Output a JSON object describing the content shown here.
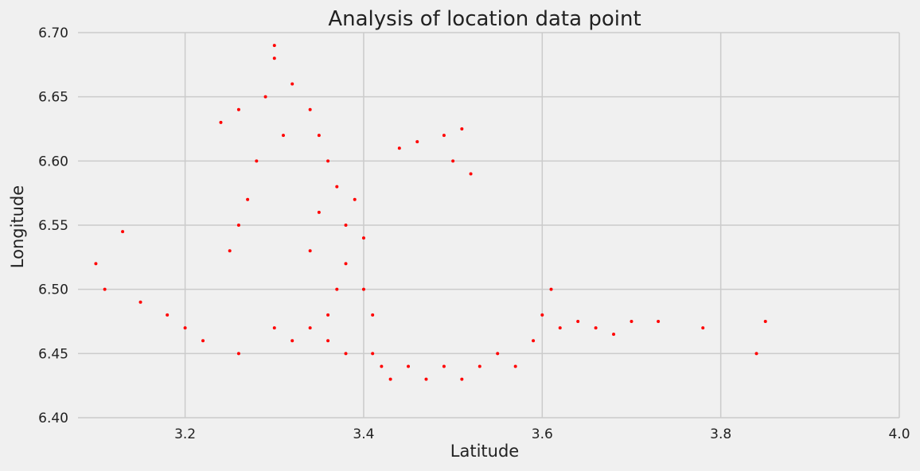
{
  "chart_data": {
    "type": "scatter",
    "title": "Analysis of location data point",
    "xlabel": "Latitude",
    "ylabel": "Longitude",
    "xlim": [
      3.08,
      4.0
    ],
    "ylim": [
      6.4,
      6.7
    ],
    "xticks": [
      3.2,
      3.4,
      3.6,
      3.8,
      4.0
    ],
    "xtick_labels": [
      "3.2",
      "3.4",
      "3.6",
      "3.8",
      "4.0"
    ],
    "yticks": [
      6.4,
      6.45,
      6.5,
      6.55,
      6.6,
      6.65,
      6.7
    ],
    "ytick_labels": [
      "6.40",
      "6.45",
      "6.50",
      "6.55",
      "6.60",
      "6.65",
      "6.70"
    ],
    "grid": true,
    "marker_color": "#ff0000",
    "background_color": "#f0f0f0",
    "grid_color": "#cbcbcb",
    "series": [
      {
        "points": [
          [
            3.3,
            6.68
          ],
          [
            3.29,
            6.65
          ],
          [
            3.31,
            6.62
          ],
          [
            3.32,
            6.66
          ],
          [
            3.34,
            6.64
          ],
          [
            3.35,
            6.62
          ],
          [
            3.36,
            6.6
          ],
          [
            3.37,
            6.58
          ],
          [
            3.38,
            6.55
          ],
          [
            3.38,
            6.52
          ],
          [
            3.37,
            6.5
          ],
          [
            3.36,
            6.48
          ],
          [
            3.35,
            6.56
          ],
          [
            3.34,
            6.53
          ],
          [
            3.39,
            6.57
          ],
          [
            3.4,
            6.54
          ],
          [
            3.4,
            6.5
          ],
          [
            3.41,
            6.48
          ],
          [
            3.28,
            6.6
          ],
          [
            3.27,
            6.57
          ],
          [
            3.26,
            6.55
          ],
          [
            3.25,
            6.53
          ],
          [
            3.24,
            6.63
          ],
          [
            3.26,
            6.64
          ],
          [
            3.3,
            6.47
          ],
          [
            3.32,
            6.46
          ],
          [
            3.34,
            6.47
          ],
          [
            3.36,
            6.46
          ],
          [
            3.38,
            6.45
          ],
          [
            3.26,
            6.45
          ],
          [
            3.22,
            6.46
          ],
          [
            3.2,
            6.47
          ],
          [
            3.18,
            6.48
          ],
          [
            3.15,
            6.49
          ],
          [
            3.41,
            6.45
          ],
          [
            3.42,
            6.44
          ],
          [
            3.43,
            6.43
          ],
          [
            3.45,
            6.44
          ],
          [
            3.47,
            6.43
          ],
          [
            3.49,
            6.44
          ],
          [
            3.51,
            6.43
          ],
          [
            3.53,
            6.44
          ],
          [
            3.55,
            6.45
          ],
          [
            3.57,
            6.44
          ],
          [
            3.59,
            6.46
          ],
          [
            3.6,
            6.48
          ],
          [
            3.61,
            6.5
          ],
          [
            3.62,
            6.47
          ],
          [
            3.64,
            6.475
          ],
          [
            3.66,
            6.47
          ],
          [
            3.68,
            6.465
          ],
          [
            3.44,
            6.61
          ],
          [
            3.46,
            6.615
          ],
          [
            3.49,
            6.62
          ],
          [
            3.51,
            6.625
          ],
          [
            3.5,
            6.6
          ],
          [
            3.52,
            6.59
          ],
          [
            3.3,
            6.69
          ],
          [
            3.7,
            6.475
          ],
          [
            3.73,
            6.475
          ],
          [
            3.78,
            6.47
          ],
          [
            3.84,
            6.45
          ],
          [
            3.85,
            6.475
          ],
          [
            3.13,
            6.545
          ],
          [
            3.1,
            6.52
          ],
          [
            3.11,
            6.5
          ]
        ]
      }
    ]
  }
}
